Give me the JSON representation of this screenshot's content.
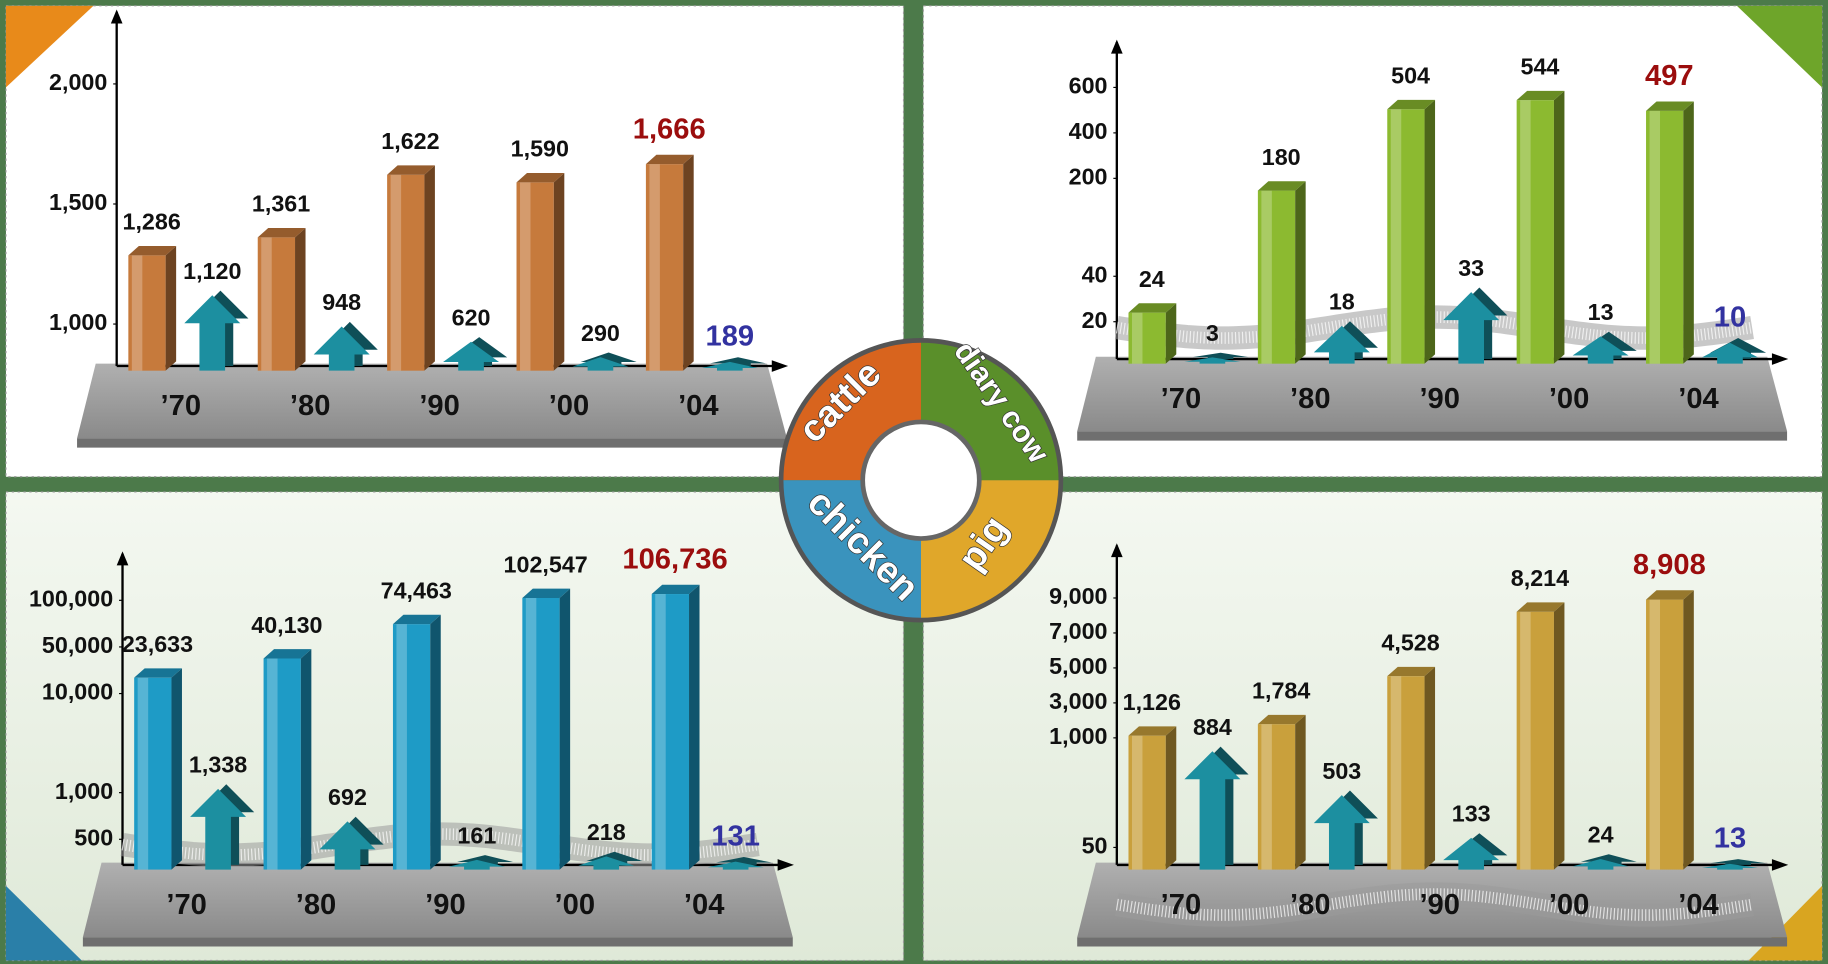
{
  "chart_data": [
    {
      "type": "bar",
      "categories": [
        "’70",
        "’80",
        "’90",
        "’00",
        "’04"
      ],
      "series": [
        {
          "type": "bar",
          "color": "#c67a3c",
          "values": [
            1286,
            1361,
            1622,
            1590,
            1666
          ],
          "value_labels": [
            "1,286",
            "1,361",
            "1,622",
            "1,590",
            "1,666"
          ]
        },
        {
          "type": "arrow",
          "color": "#1c8fa0",
          "values": [
            1120,
            948,
            620,
            290,
            189
          ],
          "value_labels": [
            "1,120",
            "948",
            "620",
            "290",
            "189"
          ]
        }
      ],
      "ylim": [
        0,
        2300
      ],
      "yticks": [
        {
          "value": 1000,
          "label": "1,000"
        },
        {
          "value": 1500,
          "label": "1,500"
        },
        {
          "value": 2000,
          "label": "2,000"
        }
      ],
      "axis_break": false
    },
    {
      "type": "bar",
      "categories": [
        "’70",
        "’80",
        "’90",
        "’00",
        "’04"
      ],
      "series": [
        {
          "type": "bar",
          "color": "#8cba30",
          "values": [
            24,
            180,
            504,
            544,
            497
          ]
        },
        {
          "type": "arrow",
          "color": "#1c8fa0",
          "values": [
            3,
            18,
            33,
            13,
            10
          ]
        }
      ],
      "ylim": [
        0,
        800
      ],
      "yticks": [
        20,
        40,
        200,
        400,
        600
      ],
      "axis_break": true
    },
    {
      "type": "bar",
      "categories": [
        "’70",
        "’80",
        "’90",
        "’00",
        "’04"
      ],
      "series": [
        {
          "type": "bar",
          "color": "#1e9bc6",
          "values": [
            23633,
            40130,
            74463,
            102547,
            106736
          ],
          "value_labels": [
            "23,633",
            "40,130",
            "74,463",
            "102,547",
            "106,736"
          ]
        },
        {
          "type": "arrow",
          "color": "#1c8fa0",
          "values": [
            1338,
            692,
            161,
            218,
            131
          ],
          "value_labels": [
            "1,338",
            "692",
            "161",
            "218",
            "131"
          ]
        }
      ],
      "ylim": [
        0,
        150000
      ],
      "yticks": [
        500,
        {
          "value": 1000,
          "label": "1,000"
        },
        {
          "value": 10000,
          "label": "10,000"
        },
        {
          "value": 50000,
          "label": "50,000"
        },
        {
          "value": 100000,
          "label": "100,000"
        }
      ],
      "axis_break": true
    },
    {
      "type": "bar",
      "categories": [
        "’70",
        "’80",
        "’90",
        "’00",
        "’04"
      ],
      "series": [
        {
          "type": "bar",
          "color": "#c9a03c",
          "values": [
            1126,
            1784,
            4528,
            8214,
            8908
          ],
          "value_labels": [
            "1,126",
            "1,784",
            "4,528",
            "8,214",
            "8,908"
          ]
        },
        {
          "type": "arrow",
          "color": "#1c8fa0",
          "values": [
            884,
            503,
            133,
            24,
            13
          ]
        }
      ],
      "ylim": [
        0,
        12000
      ],
      "yticks": [
        50,
        {
          "value": 1000,
          "label": "1,000"
        },
        {
          "value": 3000,
          "label": "3,000"
        },
        {
          "value": 5000,
          "label": "5,000"
        },
        {
          "value": 7000,
          "label": "7,000"
        },
        {
          "value": 9000,
          "label": "9,000"
        }
      ],
      "axis_break": true
    }
  ],
  "wheel": [
    "cattle",
    "diary cow",
    "chicken",
    "pig"
  ]
}
